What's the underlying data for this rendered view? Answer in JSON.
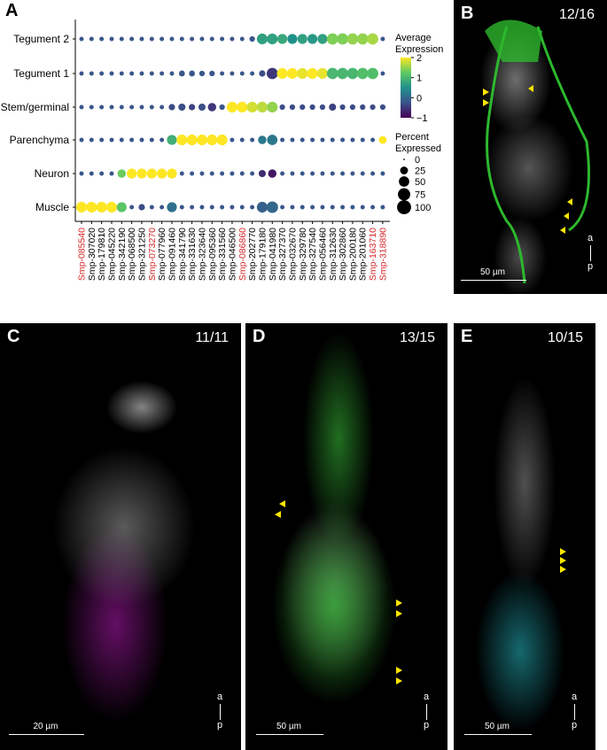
{
  "chart_data": {
    "type": "dot",
    "panel_label": "A",
    "categories": [
      "Smp-085540",
      "Smp-307020",
      "Smp-179810",
      "Smp-045220",
      "Smp-342190",
      "Smp-068500",
      "Smp-321250",
      "Smp-073270",
      "Smp-077960",
      "Smp-091460",
      "Smp-341790",
      "Smp-331630",
      "Smp-323640",
      "Smp-095360",
      "Smp-331560",
      "Smp-046500",
      "Smp-086860",
      "Smp-202770",
      "Smp-179180",
      "Smp-041980",
      "Smp-327370",
      "Smp-032670",
      "Smp-329780",
      "Smp-327540",
      "Smp-056460",
      "Smp-312630",
      "Smp-302860",
      "Smp-200180",
      "Smp-201060",
      "Smp-163710",
      "Smp-318890"
    ],
    "category_colors": [
      "#d62728",
      "#000000",
      "#000000",
      "#000000",
      "#000000",
      "#000000",
      "#000000",
      "#d62728",
      "#000000",
      "#000000",
      "#000000",
      "#000000",
      "#000000",
      "#000000",
      "#000000",
      "#000000",
      "#d62728",
      "#000000",
      "#000000",
      "#000000",
      "#000000",
      "#000000",
      "#000000",
      "#000000",
      "#000000",
      "#000000",
      "#000000",
      "#000000",
      "#000000",
      "#d62728",
      "#d62728"
    ],
    "series": [
      {
        "name": "Tegument 2",
        "values": [
          -0.2,
          -0.2,
          -0.2,
          -0.2,
          -0.2,
          -0.2,
          -0.2,
          -0.2,
          -0.2,
          -0.2,
          -0.2,
          -0.2,
          -0.2,
          -0.2,
          -0.2,
          -0.2,
          -0.2,
          -0.2,
          0.7,
          0.7,
          0.8,
          0.5,
          0.7,
          0.6,
          0.7,
          1.4,
          1.4,
          1.5,
          1.5,
          1.6,
          -0.2
        ],
        "sizes": [
          5,
          5,
          5,
          5,
          5,
          5,
          5,
          5,
          5,
          5,
          5,
          5,
          5,
          5,
          5,
          5,
          5,
          10,
          55,
          55,
          45,
          45,
          45,
          45,
          45,
          60,
          60,
          60,
          60,
          60,
          5
        ]
      },
      {
        "name": "Tegument 1",
        "values": [
          -0.2,
          -0.2,
          -0.2,
          -0.2,
          -0.2,
          -0.2,
          -0.2,
          -0.2,
          -0.2,
          -0.2,
          -0.2,
          -0.2,
          -0.2,
          -0.2,
          -0.2,
          -0.2,
          -0.2,
          -0.2,
          -0.3,
          -0.5,
          2,
          2,
          1.9,
          2,
          1.9,
          1,
          1,
          1,
          1.1,
          1.1,
          -0.2
        ],
        "sizes": [
          5,
          5,
          5,
          5,
          5,
          5,
          5,
          5,
          5,
          5,
          12,
          12,
          10,
          10,
          5,
          5,
          5,
          5,
          15,
          60,
          55,
          55,
          55,
          55,
          55,
          60,
          60,
          60,
          60,
          60,
          5
        ]
      },
      {
        "name": "Stem/germinal",
        "values": [
          -0.2,
          -0.2,
          -0.2,
          -0.2,
          -0.2,
          -0.2,
          -0.2,
          -0.2,
          -0.2,
          -0.3,
          -0.3,
          -0.4,
          -0.3,
          -0.5,
          -0.2,
          2,
          2,
          1.8,
          1.7,
          1.5,
          -0.3,
          -0.3,
          -0.3,
          -0.3,
          -0.3,
          -0.4,
          -0.3,
          -0.3,
          -0.3,
          -0.3,
          -0.3
        ],
        "sizes": [
          5,
          5,
          5,
          5,
          5,
          5,
          5,
          5,
          5,
          15,
          20,
          15,
          20,
          30,
          10,
          55,
          55,
          55,
          55,
          55,
          10,
          10,
          10,
          10,
          10,
          20,
          10,
          10,
          10,
          10,
          10
        ]
      },
      {
        "name": "Parenchyma",
        "values": [
          -0.2,
          -0.2,
          -0.2,
          -0.2,
          -0.2,
          -0.2,
          -0.2,
          -0.2,
          -0.2,
          0.9,
          2,
          2,
          2,
          2,
          2,
          -0.2,
          -0.2,
          -0.2,
          0.2,
          0.2,
          -0.2,
          -0.2,
          -0.2,
          -0.2,
          -0.2,
          -0.2,
          -0.2,
          -0.2,
          -0.2,
          -0.2,
          2
        ],
        "sizes": [
          5,
          5,
          5,
          5,
          5,
          5,
          5,
          5,
          5,
          45,
          55,
          55,
          55,
          55,
          55,
          5,
          5,
          5,
          30,
          50,
          5,
          5,
          5,
          5,
          5,
          5,
          5,
          5,
          5,
          5,
          25
        ]
      },
      {
        "name": "Neuron",
        "values": [
          -0.2,
          -0.2,
          -0.2,
          -0.2,
          1.3,
          2,
          2,
          2,
          2,
          2,
          -0.2,
          -0.2,
          -0.2,
          -0.2,
          -0.2,
          -0.2,
          -0.2,
          -0.2,
          -0.6,
          -0.8,
          -0.2,
          -0.2,
          -0.2,
          -0.2,
          -0.2,
          -0.2,
          -0.2,
          -0.2,
          -0.2,
          -0.2,
          -0.2
        ],
        "sizes": [
          5,
          5,
          5,
          5,
          30,
          45,
          45,
          45,
          45,
          45,
          5,
          5,
          5,
          5,
          5,
          5,
          5,
          5,
          20,
          30,
          5,
          5,
          5,
          5,
          5,
          5,
          5,
          5,
          5,
          5,
          5
        ]
      },
      {
        "name": "Muscle",
        "values": [
          2,
          2,
          2,
          2,
          1.2,
          -0.2,
          -0.3,
          -0.2,
          -0.2,
          0.1,
          -0.2,
          -0.2,
          -0.2,
          -0.2,
          -0.2,
          -0.2,
          -0.2,
          -0.2,
          -0.1,
          0,
          -0.2,
          -0.2,
          -0.2,
          -0.2,
          -0.2,
          -0.2,
          -0.2,
          -0.2,
          -0.2,
          -0.2,
          -0.2
        ],
        "sizes": [
          55,
          55,
          55,
          55,
          45,
          5,
          15,
          5,
          5,
          45,
          5,
          5,
          5,
          5,
          5,
          5,
          5,
          5,
          55,
          65,
          5,
          5,
          5,
          5,
          5,
          5,
          5,
          5,
          5,
          5,
          5
        ]
      }
    ],
    "color_title": "Average Expression",
    "colorlim": [
      -1,
      2
    ],
    "colorticks": [
      {
        "value": -1,
        "label": "−1"
      },
      0,
      1,
      2
    ],
    "size_title": "Percent Expressed",
    "size_ticks": [
      0,
      25,
      50,
      75,
      100
    ]
  },
  "panels": [
    {
      "label": "B",
      "count": "12/16",
      "scale": "50 µm",
      "anterior": "a",
      "posterior": "p"
    },
    {
      "label": "C",
      "count": "11/11",
      "scale": "20 µm",
      "anterior": "a",
      "posterior": "p"
    },
    {
      "label": "D",
      "count": "13/15",
      "scale": "50 µm",
      "anterior": "a",
      "posterior": "p"
    },
    {
      "label": "E",
      "count": "10/15",
      "scale": "50 µm",
      "anterior": "a",
      "posterior": "p"
    }
  ]
}
